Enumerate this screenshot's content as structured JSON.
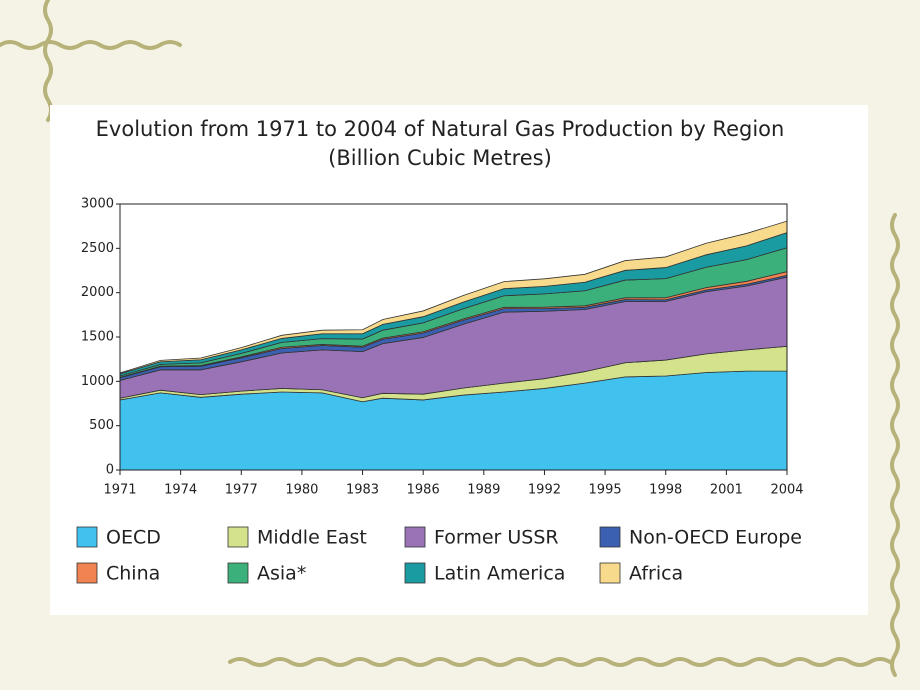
{
  "chart_data": {
    "type": "stacked-area",
    "title": "Evolution from 1971 to 2004 of Natural Gas Production by Region",
    "subtitle": "(Billion Cubic Metres)",
    "x": [
      1971,
      1973,
      1975,
      1977,
      1979,
      1981,
      1983,
      1984,
      1986,
      1988,
      1990,
      1992,
      1994,
      1996,
      1998,
      2000,
      2002,
      2004
    ],
    "series": [
      {
        "name": "OECD",
        "color": "#41c1ee",
        "values": [
          790,
          870,
          820,
          855,
          880,
          870,
          770,
          810,
          790,
          845,
          880,
          920,
          980,
          1050,
          1060,
          1100,
          1115,
          1115
        ]
      },
      {
        "name": "Middle East",
        "color": "#d3e28b",
        "values": [
          20,
          30,
          30,
          35,
          40,
          35,
          45,
          55,
          65,
          80,
          100,
          110,
          130,
          160,
          180,
          210,
          240,
          280
        ]
      },
      {
        "name": "Former USSR",
        "color": "#9a73b6",
        "values": [
          200,
          230,
          280,
          330,
          400,
          450,
          520,
          560,
          640,
          720,
          800,
          760,
          700,
          690,
          660,
          700,
          720,
          780
        ]
      },
      {
        "name": "Non-OECD Europe",
        "color": "#3b60b1",
        "values": [
          30,
          35,
          40,
          45,
          50,
          50,
          50,
          50,
          50,
          45,
          40,
          30,
          25,
          22,
          20,
          20,
          20,
          20
        ]
      },
      {
        "name": "China",
        "color": "#f08352",
        "values": [
          5,
          6,
          8,
          10,
          14,
          12,
          12,
          12,
          14,
          15,
          15,
          16,
          17,
          20,
          23,
          27,
          33,
          42
        ]
      },
      {
        "name": "Asia*",
        "color": "#3cb07a",
        "values": [
          15,
          20,
          30,
          40,
          55,
          65,
          80,
          90,
          100,
          115,
          130,
          150,
          170,
          200,
          215,
          230,
          245,
          270
        ]
      },
      {
        "name": "Latin America",
        "color": "#1a9aa1",
        "values": [
          25,
          30,
          35,
          40,
          45,
          55,
          60,
          65,
          70,
          75,
          80,
          85,
          95,
          110,
          125,
          140,
          155,
          170
        ]
      },
      {
        "name": "Africa",
        "color": "#f8da8c",
        "values": [
          10,
          15,
          20,
          25,
          35,
          40,
          45,
          55,
          65,
          75,
          80,
          85,
          90,
          110,
          120,
          130,
          140,
          130
        ]
      }
    ],
    "xlim": [
      1971,
      2004
    ],
    "xticks": [
      1971,
      1974,
      1977,
      1980,
      1983,
      1986,
      1989,
      1992,
      1995,
      1998,
      2001,
      2004
    ],
    "ylim": [
      0,
      3000
    ],
    "yticks": [
      0,
      500,
      1000,
      1500,
      2000,
      2500,
      3000
    ]
  }
}
